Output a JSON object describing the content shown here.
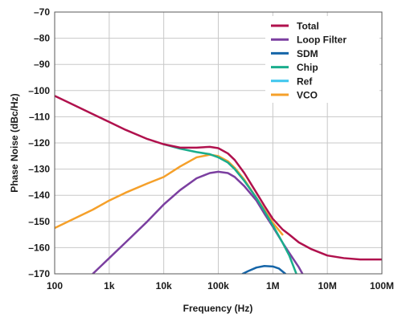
{
  "chart_data": {
    "type": "line",
    "xlabel": "Frequency (Hz)",
    "ylabel": "Phase Noise (dBc/Hz)",
    "xscale": "log",
    "xlim": [
      100,
      100000000
    ],
    "ylim": [
      -170,
      -70
    ],
    "grid": true,
    "legend_position": "top-right",
    "x_ticks": [
      {
        "value": 100,
        "label": "100"
      },
      {
        "value": 1000,
        "label": "1k"
      },
      {
        "value": 10000,
        "label": "10k"
      },
      {
        "value": 100000,
        "label": "100k"
      },
      {
        "value": 1000000,
        "label": "1M"
      },
      {
        "value": 10000000,
        "label": "10M"
      },
      {
        "value": 100000000,
        "label": "100M"
      }
    ],
    "y_ticks": [
      {
        "value": -70,
        "label": "–70"
      },
      {
        "value": -80,
        "label": "–80"
      },
      {
        "value": -90,
        "label": "–90"
      },
      {
        "value": -100,
        "label": "–100"
      },
      {
        "value": -110,
        "label": "–110"
      },
      {
        "value": -120,
        "label": "–120"
      },
      {
        "value": -130,
        "label": "–130"
      },
      {
        "value": -140,
        "label": "–140"
      },
      {
        "value": -150,
        "label": "–150"
      },
      {
        "value": -160,
        "label": "–160"
      },
      {
        "value": -170,
        "label": "–170"
      }
    ],
    "series": [
      {
        "name": "Total",
        "color": "#b0114d",
        "points": [
          [
            100,
            -102
          ],
          [
            200,
            -105
          ],
          [
            500,
            -109
          ],
          [
            1000,
            -112
          ],
          [
            2000,
            -115
          ],
          [
            5000,
            -118.5
          ],
          [
            10000,
            -120.5
          ],
          [
            20000,
            -121.8
          ],
          [
            40000,
            -121.8
          ],
          [
            70000,
            -121.5
          ],
          [
            100000,
            -122
          ],
          [
            150000,
            -124
          ],
          [
            200000,
            -126.5
          ],
          [
            300000,
            -131.5
          ],
          [
            500000,
            -139
          ],
          [
            700000,
            -144
          ],
          [
            1000000,
            -149
          ],
          [
            1500000,
            -153
          ],
          [
            2000000,
            -155
          ],
          [
            3000000,
            -158
          ],
          [
            5000000,
            -160.5
          ],
          [
            10000000,
            -163
          ],
          [
            20000000,
            -164
          ],
          [
            40000000,
            -164.5
          ],
          [
            100000000,
            -164.5
          ]
        ]
      },
      {
        "name": "Loop Filter",
        "color": "#7b3fa0",
        "points": [
          [
            500,
            -170
          ],
          [
            1000,
            -164
          ],
          [
            2000,
            -158
          ],
          [
            5000,
            -150
          ],
          [
            10000,
            -143.5
          ],
          [
            20000,
            -138
          ],
          [
            40000,
            -133.5
          ],
          [
            70000,
            -131.5
          ],
          [
            100000,
            -131
          ],
          [
            150000,
            -131.5
          ],
          [
            200000,
            -133
          ],
          [
            300000,
            -136.5
          ],
          [
            500000,
            -142
          ],
          [
            700000,
            -147
          ],
          [
            1000000,
            -152
          ],
          [
            1500000,
            -158
          ],
          [
            2000000,
            -162
          ],
          [
            3000000,
            -167.5
          ],
          [
            3500000,
            -170
          ]
        ]
      },
      {
        "name": "SDM",
        "color": "#1565a8",
        "points": [
          [
            280000,
            -170
          ],
          [
            350000,
            -169
          ],
          [
            500000,
            -167.6
          ],
          [
            700000,
            -167
          ],
          [
            1000000,
            -167.2
          ],
          [
            1300000,
            -168
          ],
          [
            1700000,
            -170
          ]
        ]
      },
      {
        "name": "Chip",
        "color": "#1aad8c",
        "points": [
          [
            10000,
            -120.5
          ],
          [
            20000,
            -122.2
          ],
          [
            40000,
            -123.5
          ],
          [
            70000,
            -124.3
          ],
          [
            100000,
            -125.5
          ],
          [
            150000,
            -127.5
          ],
          [
            200000,
            -130
          ],
          [
            300000,
            -134.5
          ],
          [
            500000,
            -141
          ],
          [
            700000,
            -146
          ],
          [
            1000000,
            -151.5
          ],
          [
            1500000,
            -158
          ],
          [
            2000000,
            -163
          ],
          [
            2700000,
            -170
          ]
        ]
      },
      {
        "name": "Ref",
        "color": "#3ec6ee",
        "points": [
          [
            10000,
            -120.5
          ],
          [
            20000,
            -122.2
          ],
          [
            40000,
            -123.5
          ],
          [
            70000,
            -124.3
          ],
          [
            100000,
            -125.5
          ],
          [
            150000,
            -127.5
          ],
          [
            200000,
            -130
          ],
          [
            300000,
            -134.5
          ],
          [
            500000,
            -141
          ],
          [
            700000,
            -146
          ],
          [
            1000000,
            -151.5
          ],
          [
            1500000,
            -158
          ],
          [
            2000000,
            -163
          ],
          [
            2700000,
            -170
          ]
        ]
      },
      {
        "name": "VCO",
        "color": "#f5a02a",
        "points": [
          [
            100,
            -152.5
          ],
          [
            200,
            -149.5
          ],
          [
            500,
            -145.5
          ],
          [
            1000,
            -142
          ],
          [
            2000,
            -139
          ],
          [
            5000,
            -135.5
          ],
          [
            10000,
            -133
          ],
          [
            20000,
            -129
          ],
          [
            40000,
            -125.5
          ],
          [
            70000,
            -124.5
          ],
          [
            100000,
            -125
          ],
          [
            150000,
            -127
          ],
          [
            200000,
            -129.5
          ],
          [
            300000,
            -134
          ],
          [
            500000,
            -141
          ],
          [
            700000,
            -145.5
          ],
          [
            1000000,
            -150.5
          ],
          [
            1500000,
            -155
          ]
        ]
      }
    ]
  }
}
